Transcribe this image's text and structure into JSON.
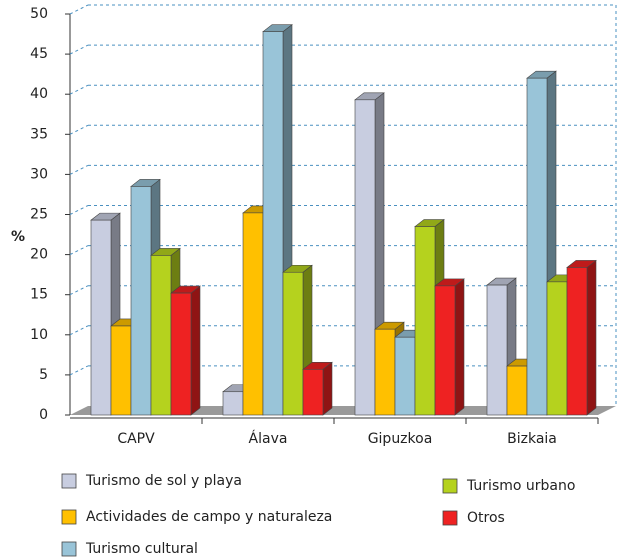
{
  "chart_data": {
    "type": "bar3d",
    "y_label": "%",
    "categories": [
      "CAPV",
      "Álava",
      "Gipuzkoa",
      "Bizkaia"
    ],
    "series": [
      {
        "name": "Turismo de sol y playa",
        "color": "#c8cde0",
        "values": [
          24.3,
          2.9,
          39.3,
          16.2
        ]
      },
      {
        "name": "Actividades de campo y naturaleza",
        "color": "#ffc000",
        "values": [
          11.1,
          25.2,
          10.7,
          6.1
        ]
      },
      {
        "name": "Turismo cultural",
        "color": "#99c4d8",
        "values": [
          28.5,
          47.8,
          9.7,
          42.0
        ]
      },
      {
        "name": "Turismo urbano",
        "color": "#b5d21e",
        "values": [
          19.9,
          17.8,
          23.5,
          16.6
        ]
      },
      {
        "name": "Otros",
        "color": "#ee2222",
        "values": [
          15.2,
          5.7,
          16.1,
          18.4
        ]
      }
    ],
    "ylim": [
      0,
      50
    ],
    "yticks": [
      0,
      5,
      10,
      15,
      20,
      25,
      30,
      35,
      40,
      45,
      50
    ],
    "grid": true
  }
}
